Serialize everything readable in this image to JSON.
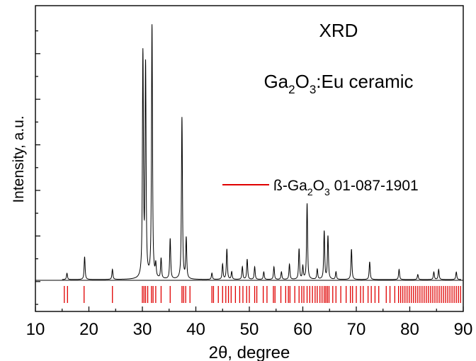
{
  "chart_data": {
    "type": "line",
    "title": "XRD",
    "subtitle": "Ga2O3:Eu ceramic",
    "subtitle_parts": {
      "a": "Ga",
      "b": "2",
      "c": "O",
      "d": "3",
      "e": ":Eu ceramic"
    },
    "xlabel": "2θ, degree",
    "ylabel": "Intensity, a.u.",
    "xlim": [
      10,
      90
    ],
    "x_ticks": [
      10,
      20,
      30,
      40,
      50,
      60,
      70,
      80,
      90
    ],
    "x_tick_labels": [
      "10",
      "20",
      "30",
      "40",
      "50",
      "60",
      "70",
      "80",
      "90"
    ],
    "grid": false,
    "colors": {
      "pattern": "#000000",
      "reference": "#e00000"
    },
    "legend": {
      "placement": "right",
      "entry": {
        "a": "ß-Ga",
        "b": "2",
        "c": "O",
        "d": "3",
        "e": " 01-087-1901"
      }
    },
    "series": [
      {
        "type": "line",
        "baseline": 0.06,
        "peaks": [
          [
            15.9,
            0.025
          ],
          [
            19.2,
            0.09
          ],
          [
            24.4,
            0.04
          ],
          [
            30.1,
            0.88
          ],
          [
            30.6,
            0.83
          ],
          [
            31.8,
            1.0
          ],
          [
            32.5,
            0.05
          ],
          [
            33.5,
            0.08
          ],
          [
            35.2,
            0.16
          ],
          [
            37.4,
            0.64
          ],
          [
            38.2,
            0.16
          ],
          [
            43.0,
            0.025
          ],
          [
            45.0,
            0.06
          ],
          [
            45.8,
            0.12
          ],
          [
            46.7,
            0.03
          ],
          [
            48.7,
            0.05
          ],
          [
            49.6,
            0.08
          ],
          [
            51.0,
            0.05
          ],
          [
            52.7,
            0.03
          ],
          [
            54.6,
            0.05
          ],
          [
            56.0,
            0.03
          ],
          [
            57.5,
            0.06
          ],
          [
            59.3,
            0.12
          ],
          [
            60.0,
            0.05
          ],
          [
            60.8,
            0.3
          ],
          [
            62.7,
            0.04
          ],
          [
            64.0,
            0.19
          ],
          [
            64.7,
            0.17
          ],
          [
            66.2,
            0.03
          ],
          [
            69.1,
            0.12
          ],
          [
            72.5,
            0.07
          ],
          [
            78.0,
            0.04
          ],
          [
            81.5,
            0.02
          ],
          [
            84.5,
            0.03
          ],
          [
            85.4,
            0.04
          ],
          [
            88.7,
            0.03
          ]
        ]
      },
      {
        "type": "reference-ticks",
        "positions": [
          15.4,
          16.0,
          19.1,
          24.4,
          30.0,
          30.3,
          30.6,
          31.0,
          31.7,
          32.0,
          32.5,
          33.5,
          35.2,
          37.4,
          37.7,
          38.1,
          38.9,
          43.0,
          43.3,
          44.2,
          45.0,
          45.6,
          46.1,
          46.6,
          47.4,
          48.2,
          48.8,
          49.5,
          50.0,
          51.0,
          51.4,
          52.6,
          53.3,
          54.5,
          54.8,
          55.9,
          56.8,
          57.3,
          57.6,
          58.5,
          59.3,
          59.8,
          60.2,
          60.8,
          61.3,
          61.8,
          62.3,
          62.7,
          63.2,
          63.6,
          64.0,
          64.3,
          64.6,
          64.9,
          65.6,
          66.2,
          67.1,
          68.1,
          68.9,
          69.3,
          70.0,
          70.8,
          71.3,
          72.2,
          72.8,
          73.5,
          74.2,
          75.6,
          76.3,
          77.2,
          77.9,
          78.3,
          78.7,
          79.1,
          79.5,
          79.9,
          80.3,
          80.7,
          81.1,
          81.5,
          81.9,
          82.3,
          82.7,
          83.1,
          83.5,
          83.9,
          84.3,
          84.7,
          85.1,
          85.5,
          85.9,
          86.3,
          86.7,
          87.1,
          87.5,
          87.9,
          88.3,
          88.7,
          89.1,
          89.5
        ]
      }
    ]
  }
}
